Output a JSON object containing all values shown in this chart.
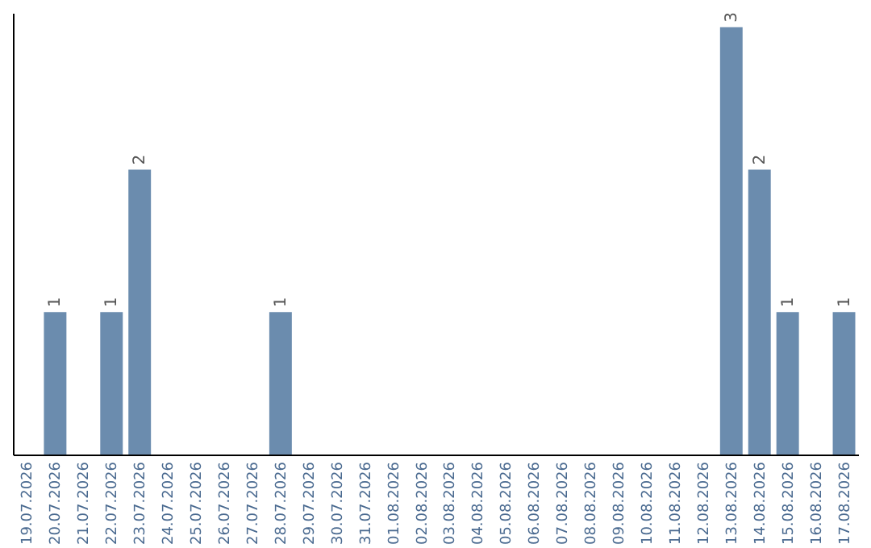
{
  "chart_data": {
    "type": "bar",
    "categories": [
      "19.07.2026",
      "20.07.2026",
      "21.07.2026",
      "22.07.2026",
      "23.07.2026",
      "24.07.2026",
      "25.07.2026",
      "26.07.2026",
      "27.07.2026",
      "28.07.2026",
      "29.07.2026",
      "30.07.2026",
      "31.07.2026",
      "01.08.2026",
      "02.08.2026",
      "03.08.2026",
      "04.08.2026",
      "05.08.2026",
      "06.08.2026",
      "07.08.2026",
      "08.08.2026",
      "09.08.2026",
      "10.08.2026",
      "11.08.2026",
      "12.08.2026",
      "13.08.2026",
      "14.08.2026",
      "15.08.2026",
      "16.08.2026",
      "17.08.2026"
    ],
    "values": [
      0,
      1,
      0,
      1,
      2,
      0,
      0,
      0,
      0,
      1,
      0,
      0,
      0,
      0,
      0,
      0,
      0,
      0,
      0,
      0,
      0,
      0,
      0,
      0,
      0,
      3,
      2,
      1,
      0,
      1
    ],
    "value_labels": [
      null,
      "1",
      null,
      "1",
      "2",
      null,
      null,
      null,
      null,
      "1",
      null,
      null,
      null,
      null,
      null,
      null,
      null,
      null,
      null,
      null,
      null,
      null,
      null,
      null,
      null,
      "3",
      "2",
      "1",
      null,
      "1"
    ],
    "color": "#6b8cae",
    "ylim": [
      0,
      3.1
    ],
    "tick_labels": "x",
    "grid": false
  }
}
